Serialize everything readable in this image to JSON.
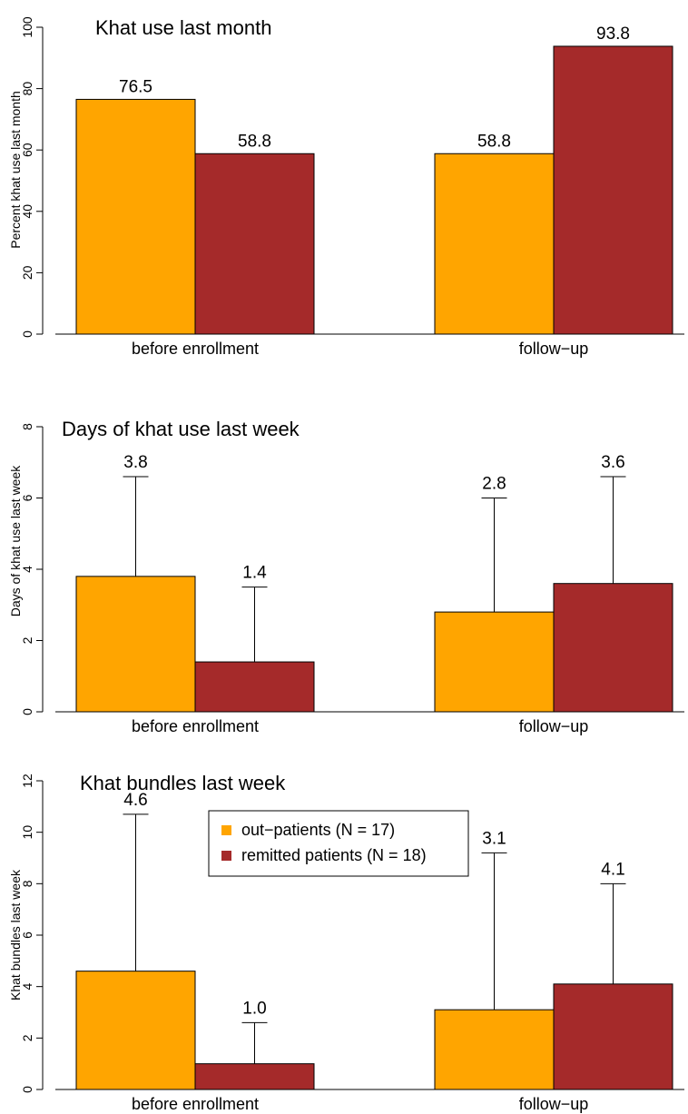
{
  "colors": {
    "out_patients": "#FFA500",
    "remitted": "#A52A2A"
  },
  "chart_data": [
    {
      "type": "bar",
      "title": "Khat use last month",
      "ylabel": "Percent khat use last month",
      "xlabel": "",
      "categories": [
        "before enrollment",
        "follow−up"
      ],
      "ylim": [
        0,
        100
      ],
      "yticks": [
        "0",
        "20",
        "40",
        "60",
        "80",
        "100"
      ],
      "series": [
        {
          "name": "out−patients (N = 17)",
          "values": [
            76.5,
            58.8
          ],
          "labels": [
            "76.5",
            "58.8"
          ]
        },
        {
          "name": "remitted patients (N = 18)",
          "values": [
            58.8,
            93.8
          ],
          "labels": [
            "58.8",
            "93.8"
          ]
        }
      ],
      "grid": false
    },
    {
      "type": "bar",
      "title": "Days of khat use last week",
      "ylabel": "Days of khat use last week",
      "xlabel": "",
      "categories": [
        "before enrollment",
        "follow−up"
      ],
      "ylim": [
        0,
        8
      ],
      "yticks": [
        "0",
        "2",
        "4",
        "6",
        "8"
      ],
      "series": [
        {
          "name": "out−patients (N = 17)",
          "values": [
            3.8,
            2.8
          ],
          "error_upper": [
            6.6,
            6.0
          ],
          "labels": [
            "3.8",
            "2.8"
          ]
        },
        {
          "name": "remitted patients (N = 18)",
          "values": [
            1.4,
            3.6
          ],
          "error_upper": [
            3.5,
            6.6
          ],
          "labels": [
            "1.4",
            "3.6"
          ]
        }
      ],
      "grid": false
    },
    {
      "type": "bar",
      "title": "Khat bundles last week",
      "ylabel": "Khat bundles last week",
      "xlabel": "",
      "categories": [
        "before enrollment",
        "follow−up"
      ],
      "ylim": [
        0,
        12
      ],
      "yticks": [
        "0",
        "2",
        "4",
        "6",
        "8",
        "10",
        "12"
      ],
      "series": [
        {
          "name": "out−patients (N = 17)",
          "values": [
            4.6,
            3.1
          ],
          "error_upper": [
            10.7,
            9.2
          ],
          "labels": [
            "4.6",
            "3.1"
          ]
        },
        {
          "name": "remitted patients (N = 18)",
          "values": [
            1.0,
            4.1
          ],
          "error_upper": [
            2.6,
            8.0
          ],
          "labels": [
            "1.0",
            "4.1"
          ]
        }
      ],
      "legend": {
        "placement": "top-center",
        "entries": [
          "out−patients (N = 17)",
          "remitted patients (N = 18)"
        ]
      },
      "grid": false
    }
  ]
}
